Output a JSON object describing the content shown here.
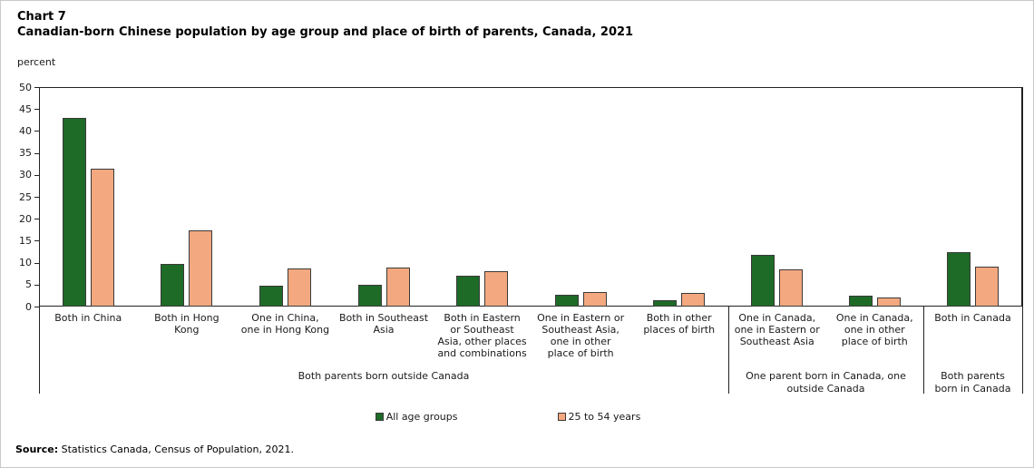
{
  "figure": {
    "chart_number": "Chart 7",
    "title": "Canadian-born Chinese population by age group and place of birth of parents, Canada, 2021",
    "unit_label": "percent",
    "source_label": "Source:",
    "source_text": " Statistics Canada, Census of Population, 2021."
  },
  "colors": {
    "green": "#1e6b28",
    "orange": "#f3a87f",
    "bar_border": "#3a3a3a",
    "axis": "#222222",
    "figure_border": "#c9c9c9"
  },
  "chart_data": {
    "type": "bar",
    "title": "Canadian-born Chinese population by age group and place of birth of parents, Canada, 2021",
    "xlabel": "",
    "ylabel": "percent",
    "ylim": [
      0,
      50
    ],
    "ytick_step": 5,
    "grid": false,
    "legend_position": "bottom",
    "categories": [
      "Both in China",
      "Both in Hong\nKong",
      "One in China,\none in Hong Kong",
      "Both in Southeast\nAsia",
      "Both in Eastern\nor Southeast\nAsia, other places\nand combinations",
      "One in Eastern or\nSoutheast Asia,\none in other\nplace of birth",
      "Both in other\nplaces of birth",
      "One in Canada,\none in Eastern or\nSoutheast Asia",
      "One in Canada,\none in other\nplace of birth",
      "Both in Canada"
    ],
    "series": [
      {
        "name": "All age groups",
        "color": "#1e6b28",
        "values": [
          43.0,
          9.8,
          4.7,
          4.9,
          7.0,
          2.7,
          1.5,
          11.8,
          2.4,
          12.4
        ]
      },
      {
        "name": "25 to 54 years",
        "color": "#f3a87f",
        "values": [
          31.5,
          17.3,
          8.6,
          8.8,
          8.1,
          3.4,
          3.1,
          8.4,
          2.0,
          9.1
        ]
      }
    ],
    "group_sections": [
      {
        "label": "Both parents born outside Canada",
        "categories_span": [
          0,
          6
        ]
      },
      {
        "label": "One parent born in Canada, one\noutside Canada",
        "categories_span": [
          7,
          8
        ]
      },
      {
        "label": "Both parents\nborn in Canada",
        "categories_span": [
          9,
          9
        ]
      }
    ]
  }
}
